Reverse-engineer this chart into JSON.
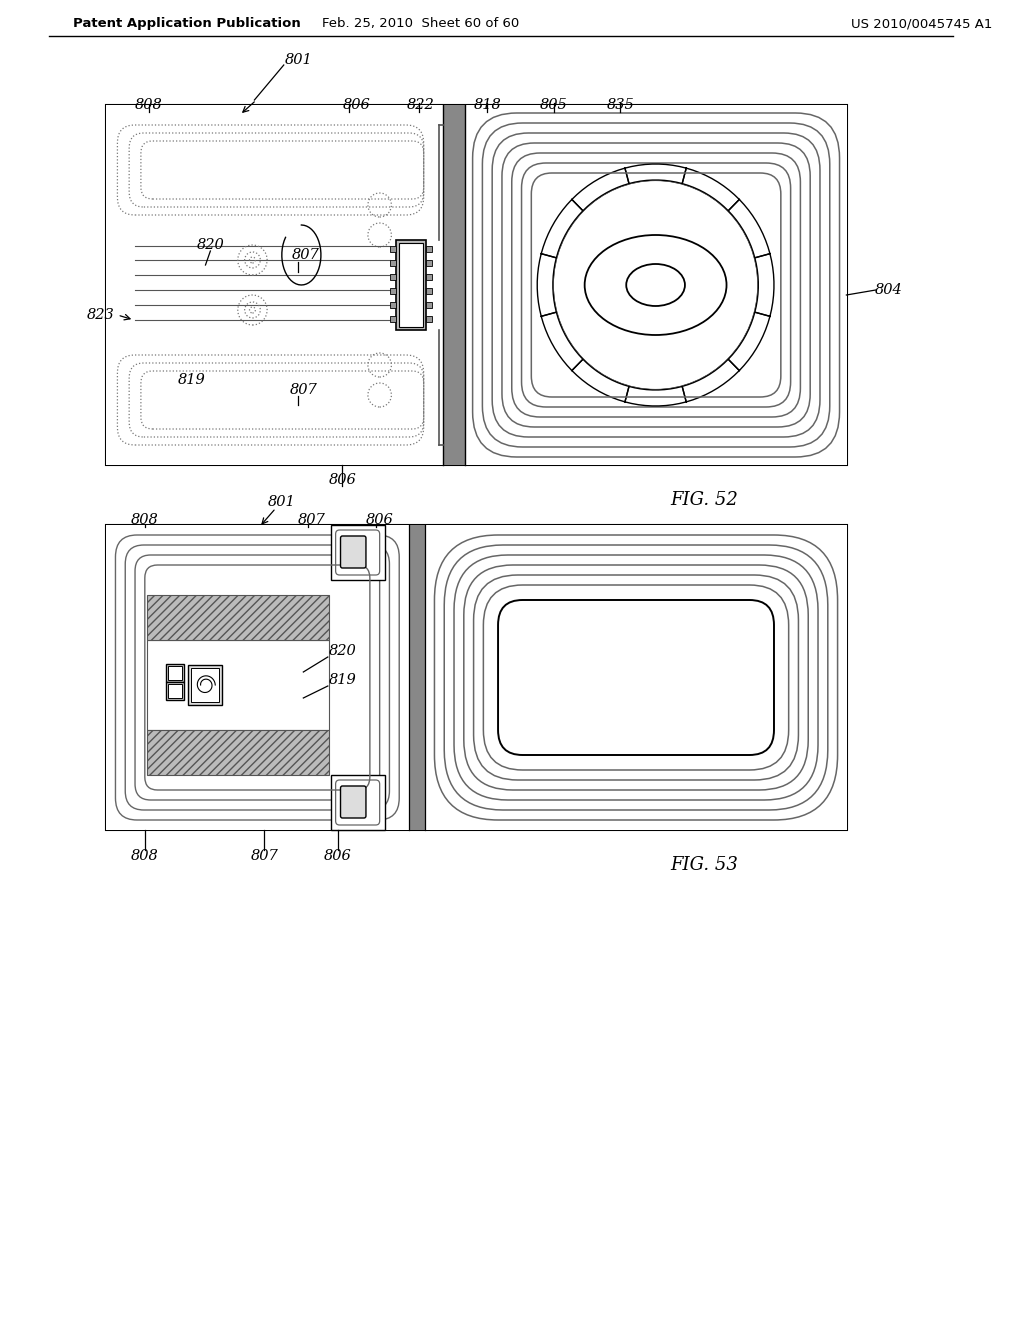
{
  "bg_color": "#ffffff",
  "header_left": "Patent Application Publication",
  "header_mid": "Feb. 25, 2010  Sheet 60 of 60",
  "header_right": "US 2010/0045745 A1",
  "fig52_label": "FIG. 52",
  "fig53_label": "FIG. 53",
  "line_color": "#000000",
  "med_gray": "#aaaaaa",
  "dark_gray": "#666666",
  "light_gray": "#cccccc",
  "hatch_gray": "#999999"
}
